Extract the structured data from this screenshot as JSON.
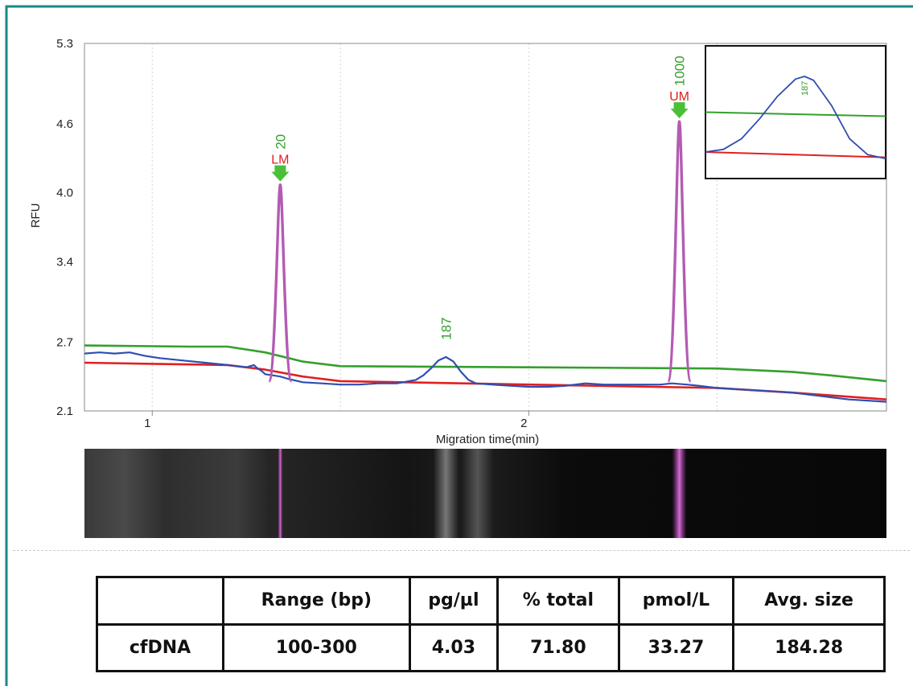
{
  "colors": {
    "frame": "#178a8a",
    "sample_trace": "#2f4fb0",
    "upper_baseline": "#33a02c",
    "lower_baseline": "#e02020",
    "marker_peak": "#b45bb4",
    "marker_label": "#e02020",
    "size_label": "#33a02c"
  },
  "chart_data": {
    "type": "line",
    "ylabel": "RFU",
    "xlabel": "Migration time(min)",
    "xlim": [
      0.82,
      2.95
    ],
    "ylim": [
      2.1,
      5.3
    ],
    "yticks": [
      "5.3",
      "4.6",
      "4.0",
      "3.4",
      "2.7",
      "2.1"
    ],
    "ytick_values": [
      5.3,
      4.6,
      4.0,
      3.4,
      2.7,
      2.1
    ],
    "xticks": [
      "1",
      "2"
    ],
    "xtick_values": [
      1,
      2
    ],
    "grid": true,
    "series": [
      {
        "role": "sample",
        "color": "#2f4fb0",
        "x": [
          0.82,
          0.86,
          0.9,
          0.94,
          0.98,
          1.02,
          1.08,
          1.14,
          1.2,
          1.25,
          1.27,
          1.28,
          1.29,
          1.3,
          1.32,
          1.34,
          1.36,
          1.4,
          1.45,
          1.5,
          1.55,
          1.6,
          1.65,
          1.7,
          1.72,
          1.74,
          1.76,
          1.78,
          1.8,
          1.82,
          1.84,
          1.86,
          1.9,
          1.95,
          2.0,
          2.05,
          2.1,
          2.15,
          2.2,
          2.25,
          2.3,
          2.35,
          2.38,
          2.42,
          2.45,
          2.5,
          2.55,
          2.6,
          2.65,
          2.7,
          2.75,
          2.8,
          2.85,
          2.9,
          2.95
        ],
        "y": [
          2.6,
          2.61,
          2.6,
          2.61,
          2.58,
          2.56,
          2.54,
          2.52,
          2.5,
          2.48,
          2.5,
          2.47,
          2.45,
          2.42,
          2.41,
          2.4,
          2.38,
          2.35,
          2.34,
          2.33,
          2.33,
          2.34,
          2.34,
          2.37,
          2.41,
          2.47,
          2.54,
          2.57,
          2.53,
          2.44,
          2.37,
          2.34,
          2.33,
          2.32,
          2.31,
          2.31,
          2.32,
          2.34,
          2.33,
          2.33,
          2.33,
          2.33,
          2.34,
          2.33,
          2.32,
          2.3,
          2.29,
          2.28,
          2.27,
          2.26,
          2.24,
          2.22,
          2.2,
          2.19,
          2.18
        ]
      },
      {
        "role": "upper_baseline",
        "color": "#33a02c",
        "x": [
          0.82,
          1.1,
          1.2,
          1.3,
          1.4,
          1.5,
          2.0,
          2.5,
          2.7,
          2.8,
          2.95
        ],
        "y": [
          2.67,
          2.66,
          2.66,
          2.61,
          2.53,
          2.49,
          2.48,
          2.47,
          2.44,
          2.41,
          2.36
        ]
      },
      {
        "role": "lower_baseline",
        "color": "#e02020",
        "x": [
          0.82,
          1.0,
          1.2,
          1.3,
          1.4,
          1.5,
          2.0,
          2.5,
          2.7,
          2.95
        ],
        "y": [
          2.52,
          2.51,
          2.5,
          2.46,
          2.4,
          2.36,
          2.33,
          2.3,
          2.26,
          2.2
        ]
      }
    ],
    "marker_peaks": [
      {
        "x": 1.34,
        "height": 4.07,
        "tag": "LM",
        "size": "20"
      },
      {
        "x": 2.4,
        "height": 4.62,
        "tag": "UM",
        "size": "1000"
      }
    ],
    "size_annotations": [
      {
        "x": 1.78,
        "label": "187"
      }
    ],
    "inset": {
      "label": "187",
      "blue_x": [
        0,
        0.1,
        0.2,
        0.3,
        0.4,
        0.5,
        0.55,
        0.6,
        0.7,
        0.8,
        0.9,
        1.0
      ],
      "blue_y": [
        0.2,
        0.22,
        0.3,
        0.45,
        0.62,
        0.75,
        0.77,
        0.74,
        0.55,
        0.3,
        0.18,
        0.15
      ],
      "green_y": [
        0.5,
        0.47
      ],
      "red_y": [
        0.2,
        0.16
      ]
    },
    "gel_bands": [
      {
        "x": 1.34,
        "kind": "marker"
      },
      {
        "x": 1.78,
        "kind": "sample"
      },
      {
        "x": 2.4,
        "kind": "marker"
      }
    ]
  },
  "table": {
    "headers": [
      "",
      "Range (bp)",
      "pg/µl",
      "% total",
      "pmol/L",
      "Avg. size"
    ],
    "rows": [
      [
        "cfDNA",
        "100-300",
        "4.03",
        "71.80",
        "33.27",
        "184.28"
      ]
    ]
  }
}
